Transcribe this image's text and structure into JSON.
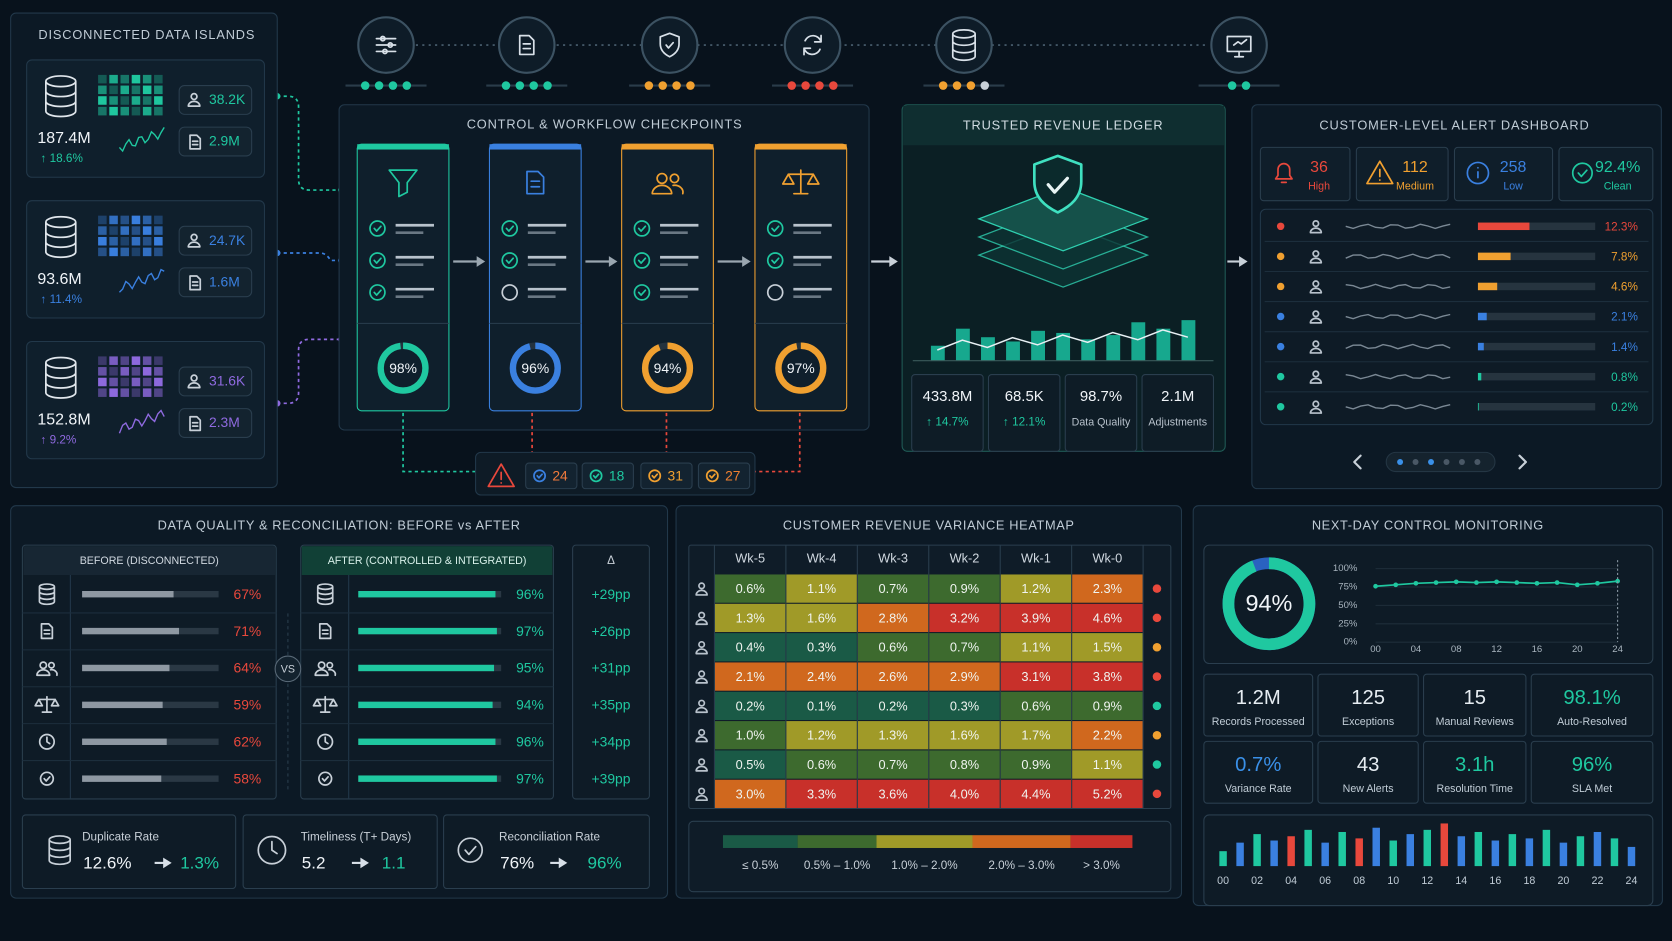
{
  "islands": {
    "title": "DISCONNECTED DATA ISLANDS",
    "items": [
      {
        "total": "187.4M",
        "change": "↑ 18.6%",
        "users": "38.2K",
        "docs": "2.9M",
        "color": "#1fc8a0"
      },
      {
        "total": "93.6M",
        "change": "↑ 11.4%",
        "users": "24.7K",
        "docs": "1.6M",
        "color": "#3a80e0"
      },
      {
        "total": "152.8M",
        "change": "↑ 9.2%",
        "users": "31.6K",
        "docs": "2.3M",
        "color": "#8f6ae0"
      }
    ]
  },
  "checkpoints": {
    "title": "CONTROL & WORKFLOW CHECKPOINTS",
    "stages": [
      {
        "value": 98,
        "label": "98%",
        "color": "#1fc8a0"
      },
      {
        "value": 96,
        "label": "96%",
        "color": "#3a80e0"
      },
      {
        "value": 94,
        "label": "94%",
        "color": "#f0a030"
      },
      {
        "value": 97,
        "label": "97%",
        "color": "#f0a030"
      }
    ],
    "alerts": [
      "24",
      "18",
      "31",
      "27"
    ]
  },
  "ledger": {
    "title": "TRUSTED REVENUE LEDGER",
    "stats": [
      {
        "value": "433.8M",
        "label": "↑ 14.7%"
      },
      {
        "value": "68.5K",
        "label": "↑ 12.1%"
      },
      {
        "value": "98.7%",
        "label": "Data Quality"
      },
      {
        "value": "2.1M",
        "label": "Adjustments"
      }
    ]
  },
  "alert_dashboard": {
    "title": "CUSTOMER-LEVEL ALERT DASHBOARD",
    "summary": [
      {
        "value": "36",
        "label": "High",
        "color": "#e8483c"
      },
      {
        "value": "112",
        "label": "Medium",
        "color": "#f0a030"
      },
      {
        "value": "258",
        "label": "Low",
        "color": "#3a80e0"
      },
      {
        "value": "92.4%",
        "label": "Clean",
        "color": "#1fc8a0"
      }
    ],
    "rows": [
      {
        "value": 12.3,
        "label": "12.3%",
        "color": "#e8483c"
      },
      {
        "value": 7.8,
        "label": "7.8%",
        "color": "#f0a030"
      },
      {
        "value": 4.6,
        "label": "4.6%",
        "color": "#f0a030"
      },
      {
        "value": 2.1,
        "label": "2.1%",
        "color": "#3a80e0"
      },
      {
        "value": 1.4,
        "label": "1.4%",
        "color": "#3a80e0"
      },
      {
        "value": 0.8,
        "label": "0.8%",
        "color": "#1fc8a0"
      },
      {
        "value": 0.2,
        "label": "0.2%",
        "color": "#1fc8a0"
      }
    ]
  },
  "quality": {
    "title": "DATA QUALITY & RECONCILIATION: BEFORE vs AFTER",
    "before_header": "BEFORE (DISCONNECTED)",
    "after_header": "AFTER (CONTROLLED & INTEGRATED)",
    "delta_header": "Δ",
    "vs": "VS",
    "before": [
      {
        "value": 67,
        "label": "67%"
      },
      {
        "value": 71,
        "label": "71%"
      },
      {
        "value": 64,
        "label": "64%"
      },
      {
        "value": 59,
        "label": "59%"
      },
      {
        "value": 62,
        "label": "62%"
      },
      {
        "value": 58,
        "label": "58%"
      }
    ],
    "after": [
      {
        "value": 96,
        "label": "96%"
      },
      {
        "value": 97,
        "label": "97%"
      },
      {
        "value": 95,
        "label": "95%"
      },
      {
        "value": 94,
        "label": "94%"
      },
      {
        "value": 96,
        "label": "96%"
      },
      {
        "value": 97,
        "label": "97%"
      }
    ],
    "delta": [
      "+29pp",
      "+26pp",
      "+31pp",
      "+35pp",
      "+34pp",
      "+39pp"
    ],
    "kpis": [
      {
        "label": "Duplicate Rate",
        "before": "12.6%",
        "after": "1.3%"
      },
      {
        "label": "Timeliness (T+ Days)",
        "before": "5.2",
        "after": "1.1"
      },
      {
        "label": "Reconciliation Rate",
        "before": "76%",
        "after": "96%"
      }
    ]
  },
  "heatmap": {
    "title": "CUSTOMER REVENUE VARIANCE HEATMAP",
    "columns": [
      "Wk-5",
      "Wk-4",
      "Wk-3",
      "Wk-2",
      "Wk-1",
      "Wk-0"
    ],
    "rows": [
      {
        "values": [
          0.6,
          1.1,
          0.7,
          0.9,
          1.2,
          2.3
        ],
        "value_labels": [
          "0.6%",
          "1.1%",
          "0.7%",
          "0.9%",
          "1.2%",
          "2.3%"
        ],
        "status": "#e8483c"
      },
      {
        "values": [
          1.3,
          1.6,
          2.8,
          3.2,
          3.9,
          4.6
        ],
        "value_labels": [
          "1.3%",
          "1.6%",
          "2.8%",
          "3.2%",
          "3.9%",
          "4.6%"
        ],
        "status": "#e8483c"
      },
      {
        "values": [
          0.4,
          0.3,
          0.6,
          0.7,
          1.1,
          1.5
        ],
        "value_labels": [
          "0.4%",
          "0.3%",
          "0.6%",
          "0.7%",
          "1.1%",
          "1.5%"
        ],
        "status": "#f0a030"
      },
      {
        "values": [
          2.1,
          2.4,
          2.6,
          2.9,
          3.1,
          3.8
        ],
        "value_labels": [
          "2.1%",
          "2.4%",
          "2.6%",
          "2.9%",
          "3.1%",
          "3.8%"
        ],
        "status": "#e8483c"
      },
      {
        "values": [
          0.2,
          0.1,
          0.2,
          0.3,
          0.6,
          0.9
        ],
        "value_labels": [
          "0.2%",
          "0.1%",
          "0.2%",
          "0.3%",
          "0.6%",
          "0.9%"
        ],
        "status": "#1fc8a0"
      },
      {
        "values": [
          1.0,
          1.2,
          1.3,
          1.6,
          1.7,
          2.2
        ],
        "value_labels": [
          "1.0%",
          "1.2%",
          "1.3%",
          "1.6%",
          "1.7%",
          "2.2%"
        ],
        "status": "#f0a030"
      },
      {
        "values": [
          0.5,
          0.6,
          0.7,
          0.8,
          0.9,
          1.1
        ],
        "value_labels": [
          "0.5%",
          "0.6%",
          "0.7%",
          "0.8%",
          "0.9%",
          "1.1%"
        ],
        "status": "#1fc8a0"
      },
      {
        "values": [
          3.0,
          3.3,
          3.6,
          4.0,
          4.4,
          5.2
        ],
        "value_labels": [
          "3.0%",
          "3.3%",
          "3.6%",
          "4.0%",
          "4.4%",
          "5.2%"
        ],
        "status": "#e8483c"
      }
    ],
    "bins": [
      0.5,
      1.0,
      2.0,
      3.0
    ],
    "colors": [
      "#1a5a46",
      "#3d6a2e",
      "#a09a28",
      "#d0681e",
      "#c8302a"
    ],
    "legend": [
      "≤ 0.5%",
      "0.5% – 1.0%",
      "1.0% – 2.0%",
      "2.0% – 3.0%",
      "> 3.0%"
    ]
  },
  "monitoring": {
    "title": "NEXT-DAY CONTROL MONITORING",
    "gauge": {
      "value": 94,
      "label": "94%"
    },
    "line": {
      "x": [
        0,
        2,
        4,
        6,
        8,
        10,
        12,
        14,
        16,
        18,
        20,
        22,
        24
      ],
      "values": [
        76,
        78,
        80,
        81,
        82,
        81,
        82,
        81,
        80,
        81,
        78,
        80,
        83
      ],
      "color": "#1fc8a0",
      "xlim": [
        0,
        24
      ],
      "ylim": [
        0,
        100
      ],
      "xticks": [
        {
          "value": 0,
          "label": "00"
        },
        {
          "value": 4,
          "label": "04"
        },
        {
          "value": 8,
          "label": "08"
        },
        {
          "value": 12,
          "label": "12"
        },
        {
          "value": 16,
          "label": "16"
        },
        {
          "value": 20,
          "label": "20"
        },
        {
          "value": 24,
          "label": "24"
        }
      ],
      "yticks": [
        {
          "value": 100,
          "label": "100%"
        },
        {
          "value": 75,
          "label": "75%"
        },
        {
          "value": 50,
          "label": "50%"
        },
        {
          "value": 25,
          "label": "25%"
        },
        {
          "value": 0,
          "label": "0%"
        }
      ]
    },
    "kpis": [
      {
        "value": "1.2M",
        "label": "Records Processed",
        "color": "#e6edf2"
      },
      {
        "value": "125",
        "label": "Exceptions",
        "color": "#e6edf2"
      },
      {
        "value": "15",
        "label": "Manual Reviews",
        "color": "#e6edf2"
      },
      {
        "value": "98.1%",
        "label": "Auto-Resolved",
        "color": "#1fc8a0"
      },
      {
        "value": "0.7%",
        "label": "Variance Rate",
        "color": "#3a90e8"
      },
      {
        "value": "43",
        "label": "New Alerts",
        "color": "#e6edf2"
      },
      {
        "value": "3.1h",
        "label": "Resolution Time",
        "color": "#1fc8a0"
      },
      {
        "value": "96%",
        "label": "SLA Met",
        "color": "#1fc8a0"
      }
    ],
    "bars": {
      "x": [
        0,
        1,
        2,
        3,
        4,
        5,
        6,
        7,
        8,
        9,
        10,
        11,
        12,
        13,
        14,
        15,
        16,
        17,
        18,
        19,
        20,
        21,
        22,
        23,
        24
      ],
      "values": [
        35,
        55,
        75,
        60,
        70,
        85,
        55,
        80,
        65,
        90,
        60,
        75,
        85,
        100,
        70,
        80,
        60,
        75,
        65,
        85,
        55,
        70,
        80,
        65,
        45
      ],
      "colors": [
        "#1fc8a0",
        "#3a80e0",
        "#1fc8a0",
        "#3a80e0",
        "#e8483c",
        "#1fc8a0",
        "#3a80e0",
        "#1fc8a0",
        "#e8483c",
        "#3a80e0",
        "#1fc8a0",
        "#3a80e0",
        "#1fc8a0",
        "#e8483c",
        "#3a80e0",
        "#1fc8a0",
        "#3a80e0",
        "#1fc8a0",
        "#3a80e0",
        "#1fc8a0",
        "#3a80e0",
        "#1fc8a0",
        "#3a80e0",
        "#1fc8a0",
        "#3a80e0"
      ],
      "xlim": [
        0,
        24
      ],
      "ylim": [
        0,
        100
      ],
      "xticks": [
        {
          "value": 0,
          "label": "00"
        },
        {
          "value": 2,
          "label": "02"
        },
        {
          "value": 4,
          "label": "04"
        },
        {
          "value": 6,
          "label": "06"
        },
        {
          "value": 8,
          "label": "08"
        },
        {
          "value": 10,
          "label": "10"
        },
        {
          "value": 12,
          "label": "12"
        },
        {
          "value": 14,
          "label": "14"
        },
        {
          "value": 16,
          "label": "16"
        },
        {
          "value": 18,
          "label": "18"
        },
        {
          "value": 20,
          "label": "20"
        },
        {
          "value": 22,
          "label": "22"
        },
        {
          "value": 24,
          "label": "24"
        }
      ]
    }
  }
}
